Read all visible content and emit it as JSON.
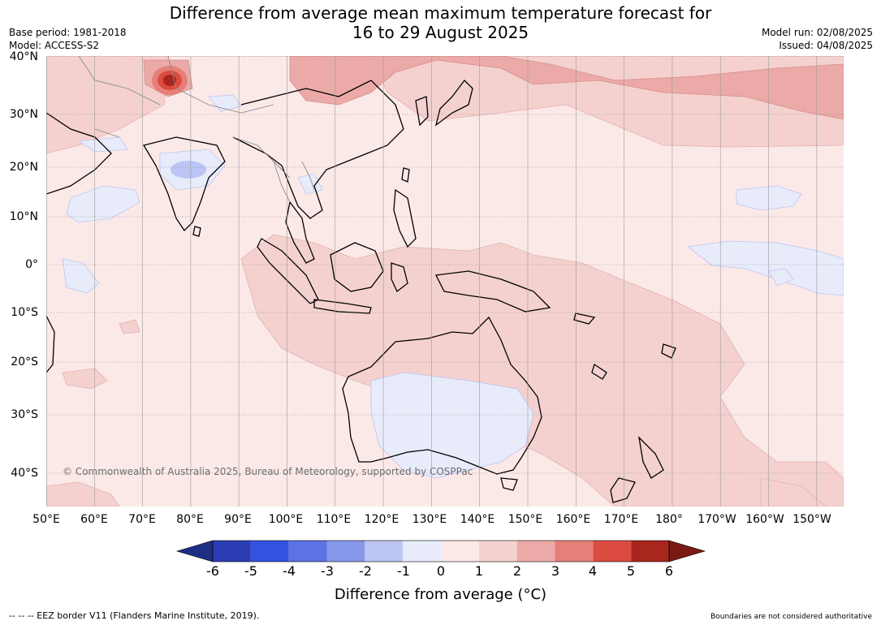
{
  "title_line1": "Difference from average mean maximum temperature forecast for",
  "title_line2": "16 to 29 August 2025",
  "base_period": "Base period: 1981-2018",
  "model": "Model: ACCESS-S2",
  "model_run": "Model run: 02/08/2025",
  "issued": "Issued: 04/08/2025",
  "lat_labels": [
    "40°N",
    "30°N",
    "20°N",
    "10°N",
    "0°",
    "10°S",
    "20°S",
    "30°S",
    "40°S"
  ],
  "lon_labels": [
    "50°E",
    "60°E",
    "70°E",
    "80°E",
    "90°E",
    "100°E",
    "110°E",
    "120°E",
    "130°E",
    "140°E",
    "150°E",
    "160°E",
    "170°E",
    "180°",
    "170°W",
    "160°W",
    "150°W"
  ],
  "copyright": "© Commonwealth of Australia 2025, Bureau of Meteorology, supported by COSPPac",
  "colorbar": {
    "labels": [
      "-6",
      "-5",
      "-4",
      "-3",
      "-2",
      "-1",
      "0",
      "1",
      "2",
      "3",
      "4",
      "5",
      "6"
    ],
    "title": "Difference from average (°C)",
    "colors": [
      "#1f2e85",
      "#2a3db5",
      "#3452e0",
      "#5e73e3",
      "#8797ea",
      "#bcc5f3",
      "#e8ebfa",
      "#fbe9e8",
      "#f4d1cf",
      "#ebaaa7",
      "#e67f78",
      "#db4b3f",
      "#a8261e",
      "#7b1a15"
    ]
  },
  "footer_left": "--  --  -- EEZ border V11 (Flanders Marine Institute, 2019).",
  "footer_right": "Boundaries are not considered authoritative"
}
